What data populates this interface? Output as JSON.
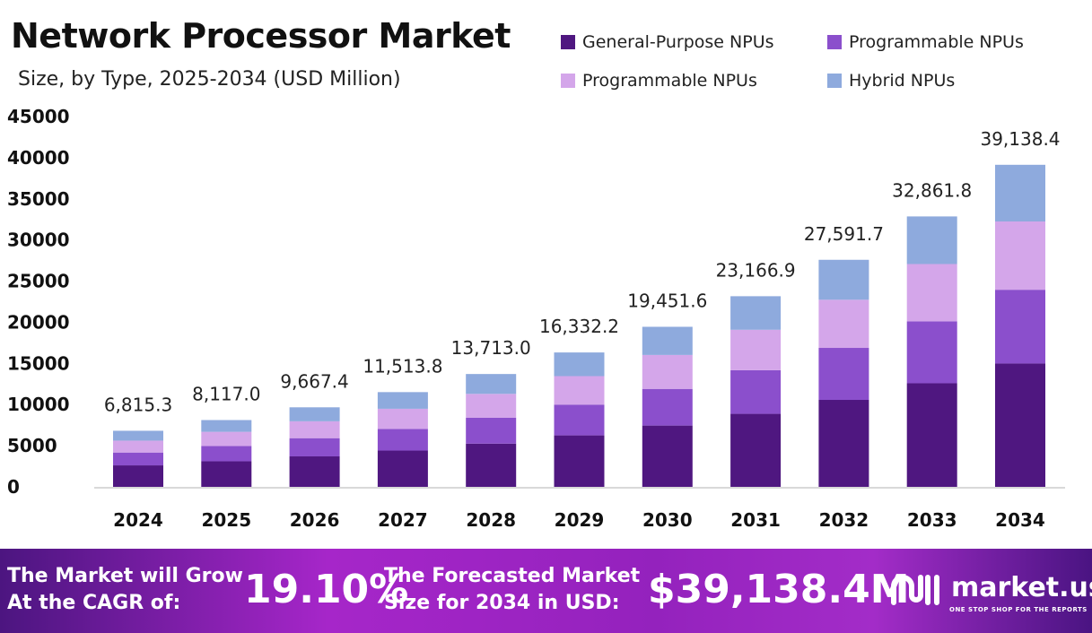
{
  "chart_data": {
    "type": "bar",
    "stacked": true,
    "title": "Network Processor Market",
    "subtitle": "Size, by Type, 2025-2034 (USD Million)",
    "categories": [
      "2024",
      "2025",
      "2026",
      "2027",
      "2028",
      "2029",
      "2030",
      "2031",
      "2032",
      "2033",
      "2034"
    ],
    "totals": [
      "6,815.3",
      "8,117.0",
      "9,667.4",
      "11,513.8",
      "13,713.0",
      "16,332.2",
      "19,451.6",
      "23,166.9",
      "27,591.7",
      "32,861.8",
      "39,138.4"
    ],
    "series": [
      {
        "name": "General-Purpose NPUs",
        "color": "#4f1780",
        "values": [
          2610,
          3109,
          3703,
          4410,
          5252,
          6255,
          7450,
          8873,
          10568,
          12586,
          14990
        ]
      },
      {
        "name": "Programmable NPUs",
        "color": "#8b4fcc",
        "values": [
          1561,
          1859,
          2214,
          2637,
          3140,
          3740,
          4454,
          5305,
          6319,
          7525,
          8963
        ]
      },
      {
        "name": "Programmable NPUs",
        "color": "#d4a6ea",
        "values": [
          1445,
          1721,
          2050,
          2441,
          2907,
          3462,
          4124,
          4911,
          5849,
          6967,
          8297
        ]
      },
      {
        "name": "Hybrid NPUs",
        "color": "#8eaadd",
        "values": [
          1199,
          1428,
          1700,
          2025,
          2414,
          2875,
          3424,
          4078,
          4856,
          5784,
          6888
        ]
      }
    ],
    "yticks": [
      "0",
      "5000",
      "10000",
      "15000",
      "20000",
      "25000",
      "30000",
      "35000",
      "40000",
      "45000"
    ],
    "ylim": [
      0,
      45000
    ],
    "grid": false,
    "legend": "top-right"
  },
  "banner": {
    "cagr_text_1": "The Market will Grow",
    "cagr_text_2": "At the CAGR of:",
    "cagr": "19.10%",
    "forecast_text_1": "The Forecasted Market",
    "forecast_text_2": "Size for 2034 in USD:",
    "forecast": "$39,138.4M",
    "logo": "market.us",
    "tagline": "ONE STOP SHOP FOR THE REPORTS"
  }
}
